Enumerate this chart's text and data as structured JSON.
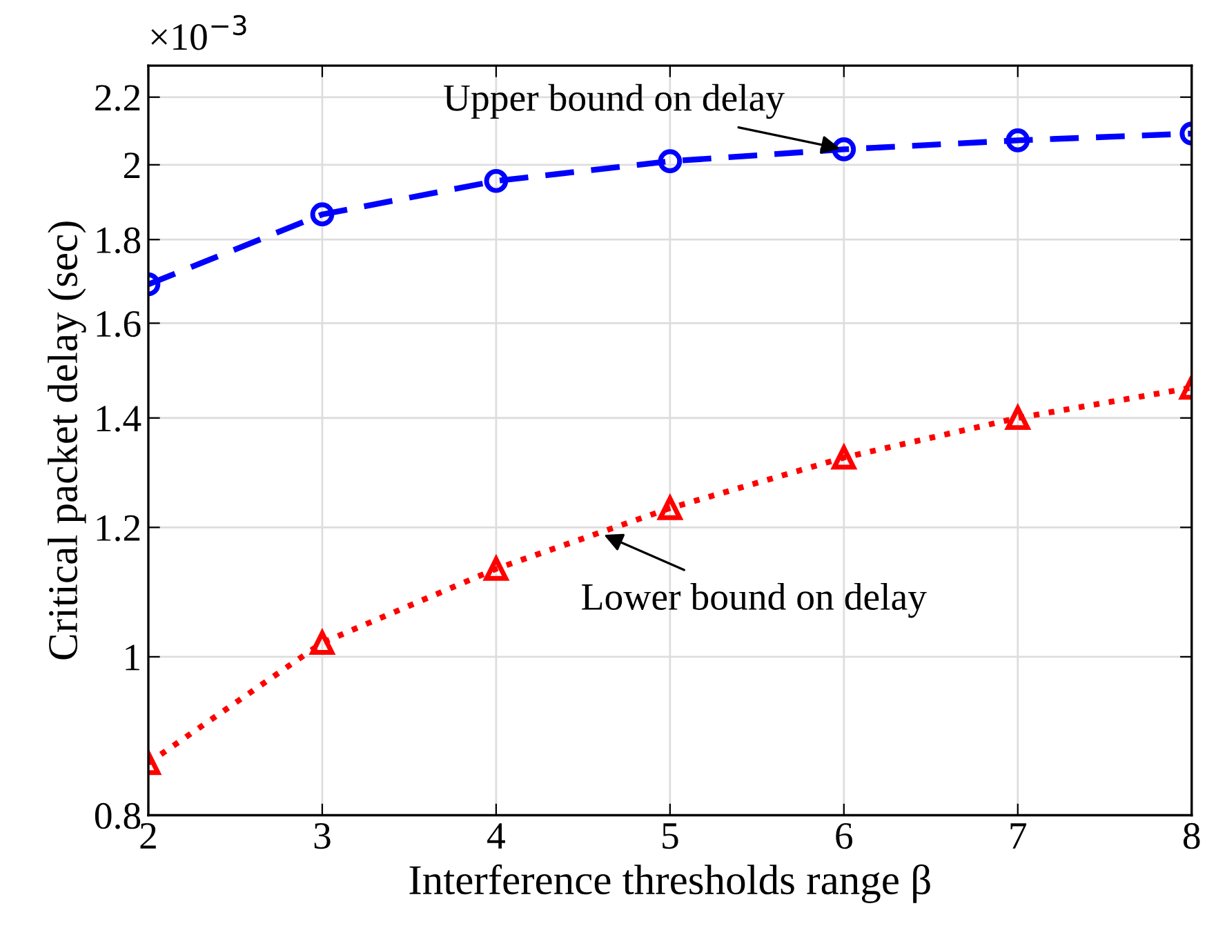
{
  "chart_data": {
    "type": "line",
    "xlabel": "Interference thresholds range β",
    "ylabel": "Critical packet delay (sec)",
    "x": [
      2,
      3,
      4,
      5,
      6,
      7,
      8
    ],
    "series": [
      {
        "color": "#0000ff",
        "marker": "circle",
        "line_style": "dashed",
        "values": [
          1.69,
          1.865,
          1.955,
          2.01,
          2.044,
          2.07,
          2.09
        ]
      },
      {
        "color": "#ff0000",
        "marker": "triangle",
        "line_style": "dotted",
        "values": [
          0.861,
          1.02,
          1.132,
          1.233,
          1.324,
          1.4,
          1.461
        ]
      }
    ],
    "log": "y",
    "xlim": [
      2,
      8
    ],
    "xticks": [
      2,
      3,
      4,
      5,
      6,
      7,
      8
    ],
    "ylim": [
      0.8,
      2.3
    ],
    "yticks": [
      0.8,
      1,
      1.2,
      1.4,
      1.6,
      1.8,
      2,
      2.2
    ],
    "grid": true,
    "annotations": [
      "×10$^{−3}$",
      {
        "text": "Upper bound on delay",
        "x": 6,
        "y": 2.044
      },
      {
        "text": "Lower bound on delay",
        "x": 4.6,
        "y": 1.19
      }
    ]
  }
}
